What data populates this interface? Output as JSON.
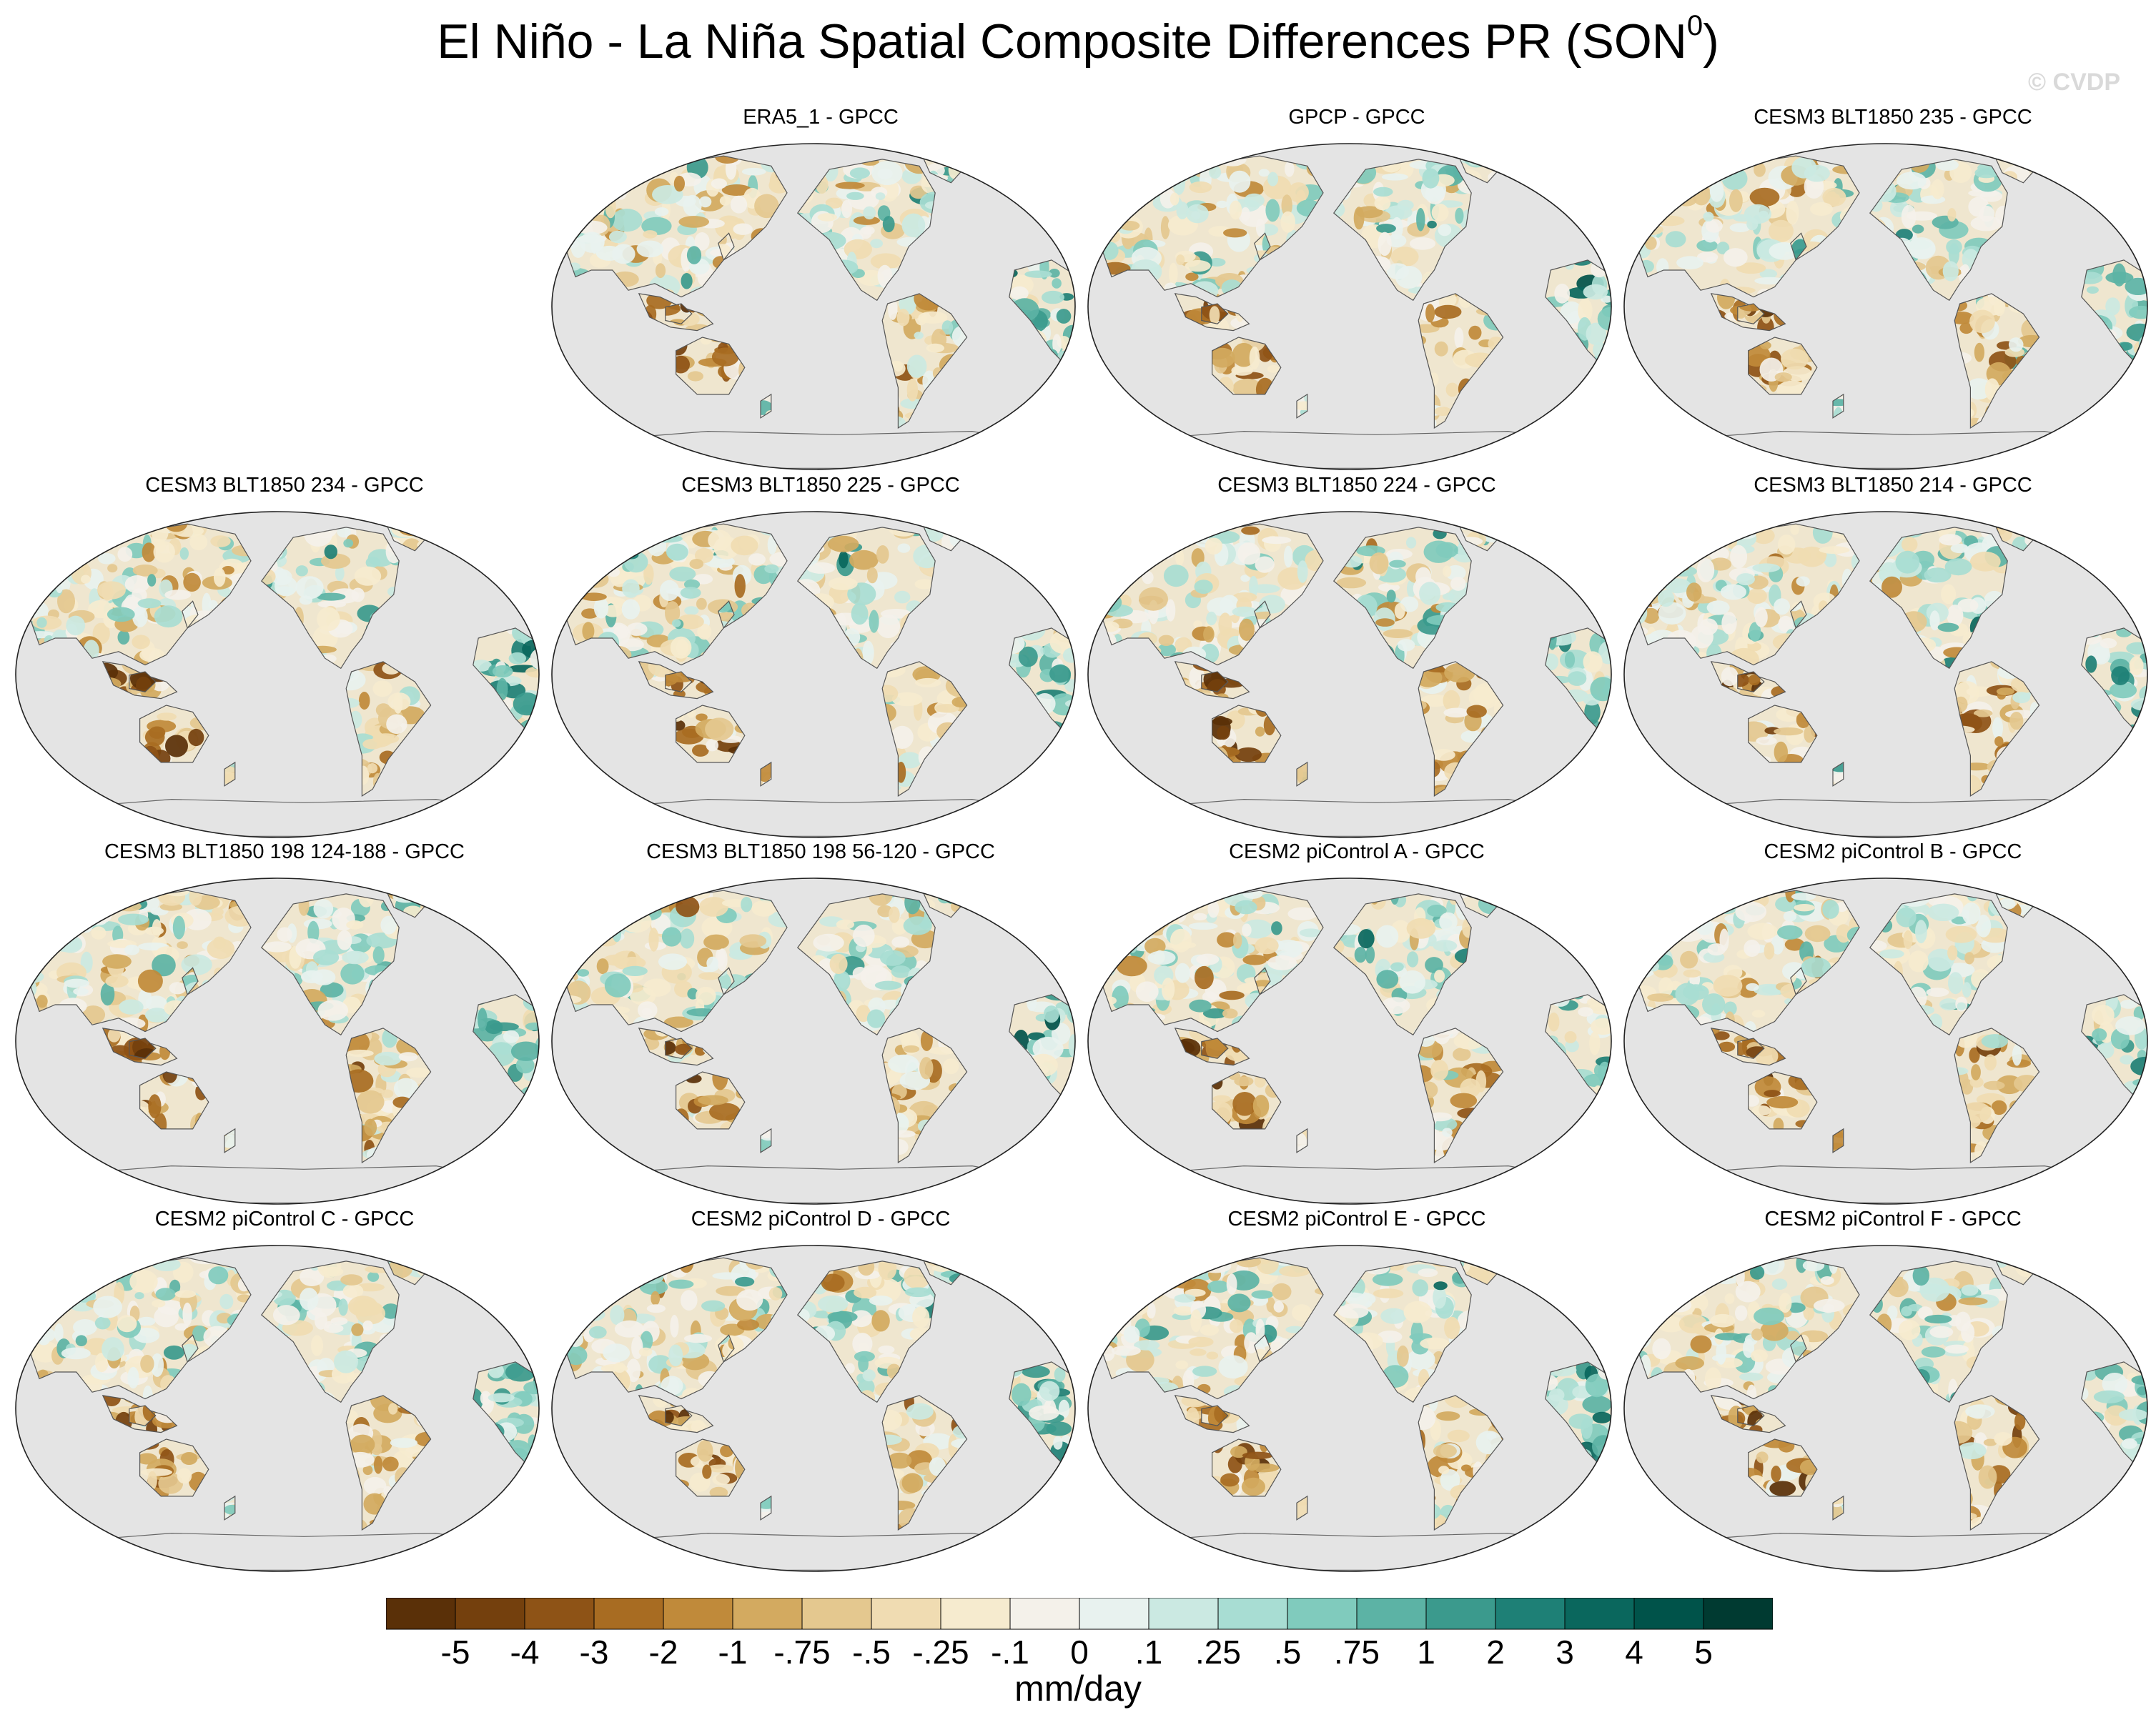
{
  "figure": {
    "title_main": "El Niño - La Niña Spatial Composite Differences PR (SON",
    "title_sup": "0",
    "title_close": ")",
    "credit": "© CVDP",
    "units": "mm/day"
  },
  "chart_data": {
    "type": "heatmap",
    "title": "El Niño - La Niña Spatial Composite Differences PR (SON0)",
    "variable": "PR",
    "season": "SON0",
    "units": "mm/day",
    "projection": "global map, Pacific-centered",
    "panels": [
      {
        "row": 1,
        "col": 2,
        "label": "ERA5_1 - GPCC",
        "pattern": 1
      },
      {
        "row": 1,
        "col": 3,
        "label": "GPCP - GPCC",
        "pattern": 2
      },
      {
        "row": 1,
        "col": 4,
        "label": "CESM3 BLT1850 235 - GPCC",
        "pattern": 3
      },
      {
        "row": 2,
        "col": 1,
        "label": "CESM3 BLT1850 234 - GPCC",
        "pattern": 4
      },
      {
        "row": 2,
        "col": 2,
        "label": "CESM3 BLT1850 225 - GPCC",
        "pattern": 5
      },
      {
        "row": 2,
        "col": 3,
        "label": "CESM3 BLT1850 224 - GPCC",
        "pattern": 6
      },
      {
        "row": 2,
        "col": 4,
        "label": "CESM3 BLT1850 214 - GPCC",
        "pattern": 7
      },
      {
        "row": 3,
        "col": 1,
        "label": "CESM3 BLT1850 198 124-188 - GPCC",
        "pattern": 8
      },
      {
        "row": 3,
        "col": 2,
        "label": "CESM3 BLT1850 198 56-120 - GPCC",
        "pattern": 9
      },
      {
        "row": 3,
        "col": 3,
        "label": "CESM2 piControl A - GPCC",
        "pattern": 10
      },
      {
        "row": 3,
        "col": 4,
        "label": "CESM2 piControl B - GPCC",
        "pattern": 11
      },
      {
        "row": 4,
        "col": 1,
        "label": "CESM2 piControl C - GPCC",
        "pattern": 12
      },
      {
        "row": 4,
        "col": 2,
        "label": "CESM2 piControl D - GPCC",
        "pattern": 13
      },
      {
        "row": 4,
        "col": 3,
        "label": "CESM2 piControl E - GPCC",
        "pattern": 14
      },
      {
        "row": 4,
        "col": 4,
        "label": "CESM2 piControl F - GPCC",
        "pattern": 15
      }
    ],
    "colorbar": {
      "labels": [
        "-5",
        "-4",
        "-3",
        "-2",
        "-1",
        "-.75",
        "-.5",
        "-.25",
        "-.1",
        "0",
        ".1",
        ".25",
        ".5",
        ".75",
        "1",
        "2",
        "3",
        "4",
        "5"
      ],
      "colors": [
        "#5a3008",
        "#74400d",
        "#8e5316",
        "#a86c22",
        "#c08a3a",
        "#d3aa60",
        "#e4c88f",
        "#f0dcb2",
        "#f6ebcf",
        "#f4f1ea",
        "#e8f2ef",
        "#cbe9e2",
        "#a8ddd3",
        "#80cbbd",
        "#5cb3a5",
        "#3b9a8d",
        "#1e8076",
        "#0a675d",
        "#00534a",
        "#003a31"
      ]
    }
  }
}
